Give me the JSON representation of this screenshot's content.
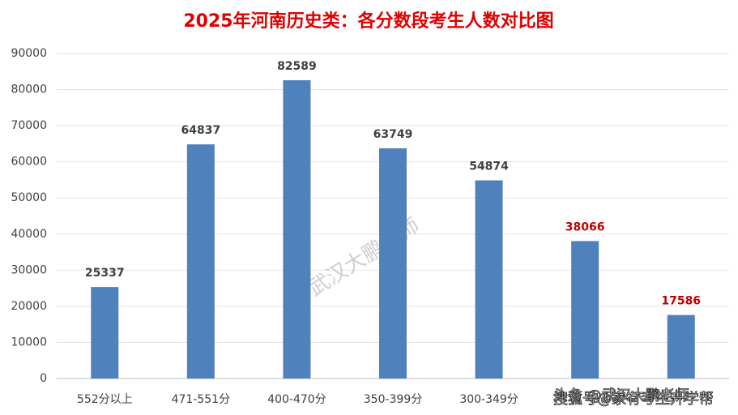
{
  "chart_data": {
    "type": "bar",
    "title": "2025年河南历史类：各分数段考生人数对比图",
    "categories": [
      "552分以上",
      "471-551分",
      "400-470分",
      "350-399分",
      "300-349分",
      null,
      null
    ],
    "values": [
      25337,
      64837,
      82589,
      63749,
      54874,
      38066,
      17586
    ],
    "color": "#4f81bd",
    "value_label_colors": [
      "#404040",
      "#404040",
      "#404040",
      "#404040",
      "#404040",
      "#c00000",
      "#c00000"
    ],
    "ylim": [
      0,
      90000
    ],
    "yticks": [
      0,
      10000,
      20000,
      30000,
      40000,
      50000,
      60000,
      70000,
      80000,
      90000
    ],
    "grid": true,
    "watermarks": [
      "武汉大鹏老师",
      "头条 @武汉大鹏老师",
      "搜狐号@家有考生升学帮"
    ]
  }
}
